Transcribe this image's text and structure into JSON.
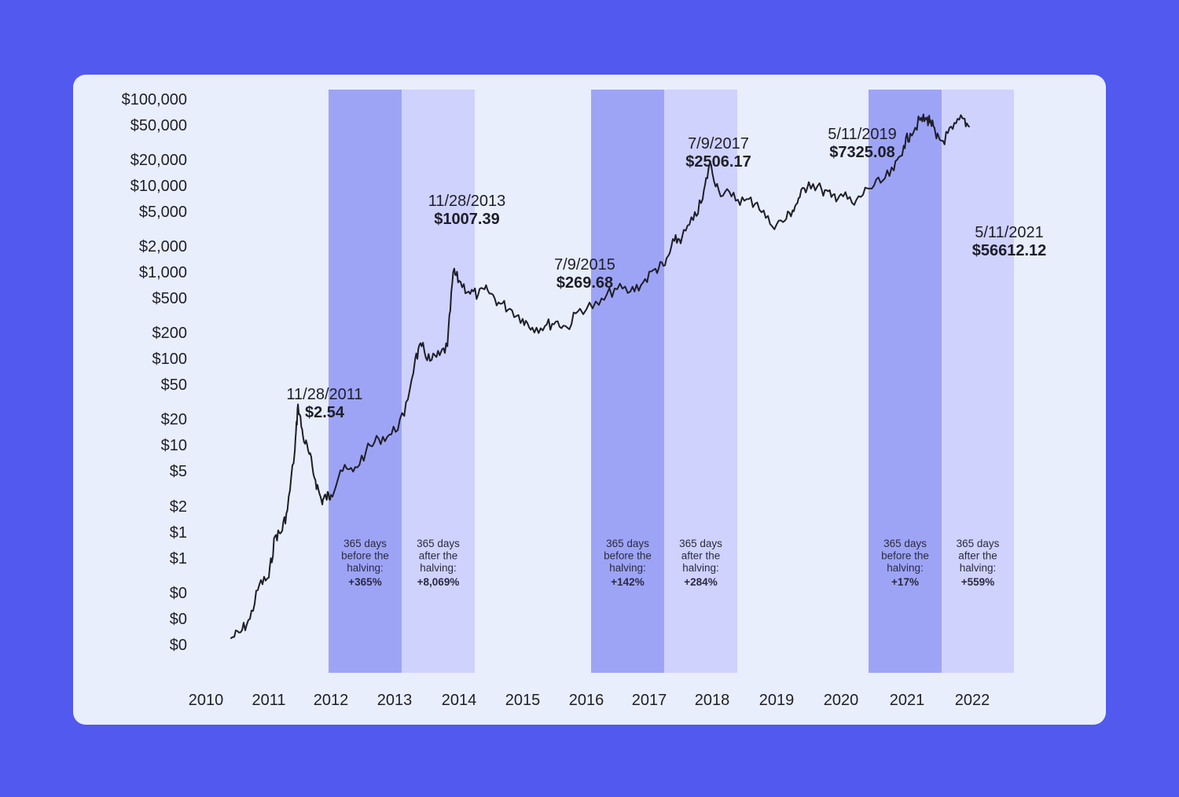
{
  "colors": {
    "background": "#5159ef",
    "card": "#e9eefc",
    "band_before": "#9ea4f5",
    "band_after": "#cfd2fc",
    "line": "#1e1e28"
  },
  "chart_data": {
    "type": "line",
    "title": "",
    "xlabel": "",
    "ylabel": "",
    "y_scale": "log",
    "grid": false,
    "x_ticks": [
      "2010",
      "2011",
      "2012",
      "2013",
      "2014",
      "2015",
      "2016",
      "2017",
      "2018",
      "2019",
      "2020",
      "2021",
      "2022"
    ],
    "y_ticks": [
      "$100,000",
      "$50,000",
      "$20,000",
      "$10,000",
      "$5,000",
      "$2,000",
      "$1,000",
      "$500",
      "$200",
      "$100",
      "$50",
      "$20",
      "$10",
      "$5",
      "$2",
      "$1",
      "$1",
      "$0",
      "$0",
      "$0"
    ],
    "annotations": [
      {
        "date": "11/28/2011",
        "price": "$2.54"
      },
      {
        "date": "11/28/2013",
        "price": "$1007.39"
      },
      {
        "date": "7/9/2015",
        "price": "$269.68"
      },
      {
        "date": "7/9/2017",
        "price": "$2506.17"
      },
      {
        "date": "5/11/2019",
        "price": "$7325.08"
      },
      {
        "date": "5/11/2021",
        "price": "$56612.12"
      }
    ],
    "bands": [
      {
        "kind": "before",
        "text": [
          "365 days",
          "before the",
          "halving:"
        ],
        "change": "+365%"
      },
      {
        "kind": "after",
        "text": [
          "365 days",
          "after the",
          "halving:"
        ],
        "change": "+8,069%"
      },
      {
        "kind": "before",
        "text": [
          "365 days",
          "before the",
          "halving:"
        ],
        "change": "+142%"
      },
      {
        "kind": "after",
        "text": [
          "365 days",
          "after the",
          "halving:"
        ],
        "change": "+284%"
      },
      {
        "kind": "before",
        "text": [
          "365 days",
          "before the",
          "halving:"
        ],
        "change": "+17%"
      },
      {
        "kind": "after",
        "text": [
          "365 days",
          "after the",
          "halving:"
        ],
        "change": "+559%"
      }
    ],
    "series": [
      {
        "values": [
          [
            2010.4,
            0.06
          ],
          [
            2010.55,
            0.07
          ],
          [
            2010.7,
            0.1
          ],
          [
            2010.85,
            0.25
          ],
          [
            2011.0,
            0.3
          ],
          [
            2011.1,
            0.9
          ],
          [
            2011.2,
            1.0
          ],
          [
            2011.3,
            1.8
          ],
          [
            2011.42,
            9
          ],
          [
            2011.47,
            30
          ],
          [
            2011.55,
            13
          ],
          [
            2011.65,
            8
          ],
          [
            2011.75,
            4
          ],
          [
            2011.85,
            2.3
          ],
          [
            2011.92,
            2.54
          ],
          [
            2012.0,
            2.7
          ],
          [
            2012.15,
            5.2
          ],
          [
            2012.35,
            5.0
          ],
          [
            2012.55,
            8.5
          ],
          [
            2012.75,
            12
          ],
          [
            2012.95,
            13.5
          ],
          [
            2013.15,
            22
          ],
          [
            2013.32,
            100
          ],
          [
            2013.42,
            140
          ],
          [
            2013.55,
            95
          ],
          [
            2013.7,
            110
          ],
          [
            2013.82,
            140
          ],
          [
            2013.91,
            1007.39
          ],
          [
            2014.0,
            800
          ],
          [
            2014.15,
            600
          ],
          [
            2014.3,
            550
          ],
          [
            2014.45,
            620
          ],
          [
            2014.62,
            450
          ],
          [
            2014.8,
            380
          ],
          [
            2015.0,
            290
          ],
          [
            2015.15,
            230
          ],
          [
            2015.35,
            240
          ],
          [
            2015.52,
            269.68
          ],
          [
            2015.7,
            230
          ],
          [
            2015.9,
            380
          ],
          [
            2016.2,
            420
          ],
          [
            2016.45,
            650
          ],
          [
            2016.7,
            600
          ],
          [
            2016.9,
            760
          ],
          [
            2017.1,
            1100
          ],
          [
            2017.25,
            1200
          ],
          [
            2017.4,
            2300
          ],
          [
            2017.52,
            2506.17
          ],
          [
            2017.7,
            4000
          ],
          [
            2017.85,
            7000
          ],
          [
            2017.96,
            18000
          ],
          [
            2018.1,
            9000
          ],
          [
            2018.3,
            7500
          ],
          [
            2018.5,
            6700
          ],
          [
            2018.7,
            6400
          ],
          [
            2018.9,
            3600
          ],
          [
            2019.1,
            3800
          ],
          [
            2019.25,
            5200
          ],
          [
            2019.36,
            7325.08
          ],
          [
            2019.5,
            11000
          ],
          [
            2019.7,
            9000
          ],
          [
            2019.85,
            7400
          ],
          [
            2020.0,
            8000
          ],
          [
            2020.2,
            6000
          ],
          [
            2020.4,
            9300
          ],
          [
            2020.6,
            10800
          ],
          [
            2020.8,
            15000
          ],
          [
            2020.95,
            29000
          ],
          [
            2021.05,
            40000
          ],
          [
            2021.2,
            57000
          ],
          [
            2021.3,
            58000
          ],
          [
            2021.36,
            56612.12
          ],
          [
            2021.45,
            35000
          ],
          [
            2021.55,
            33000
          ],
          [
            2021.7,
            45000
          ],
          [
            2021.85,
            60000
          ],
          [
            2021.95,
            48000
          ]
        ]
      }
    ]
  }
}
